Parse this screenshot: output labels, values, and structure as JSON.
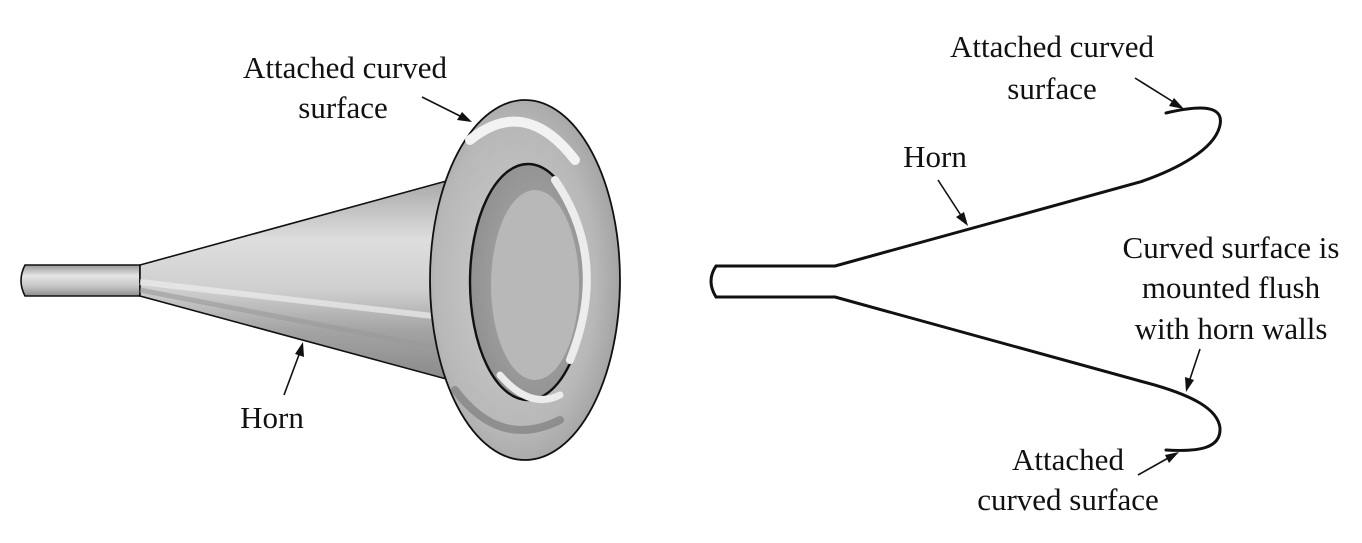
{
  "left_view": {
    "label_attached_line1": "Attached curved",
    "label_attached_line2": "surface",
    "label_horn": "Horn"
  },
  "right_view": {
    "label_attached_top_line1": "Attached curved",
    "label_attached_top_line2": "surface",
    "label_horn": "Horn",
    "label_flush_line1": "Curved surface is",
    "label_flush_line2": "mounted flush",
    "label_flush_line3": "with horn walls",
    "label_attached_bottom_line1": "Attached",
    "label_attached_bottom_line2": "curved surface"
  },
  "colors": {
    "outline": "#111111",
    "metal_light": "#e6e6e6",
    "metal_mid": "#b5b5b5",
    "metal_dark": "#8a8a8a",
    "background": "#ffffff"
  }
}
